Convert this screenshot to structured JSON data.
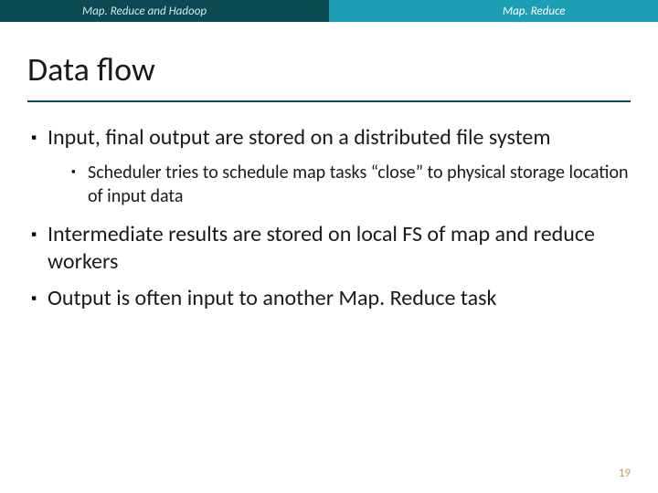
{
  "header": {
    "left": "Map. Reduce and Hadoop",
    "right": "Map. Reduce"
  },
  "title": "Data flow",
  "bullets": {
    "b1": "Input, final output are stored on a distributed file system",
    "b1a": "Scheduler tries to schedule map tasks “close” to physical storage location of input data",
    "b2": "Intermediate results are stored on local FS of map and reduce workers",
    "b3": "Output is often input to another Map. Reduce task"
  },
  "pageNumber": "19",
  "colors": {
    "headerLeftBg": "#0b4a53",
    "headerRightBg": "#1c9eb5",
    "ruleColor": "#0b4a53",
    "pageNumColor": "#c39b5a"
  }
}
